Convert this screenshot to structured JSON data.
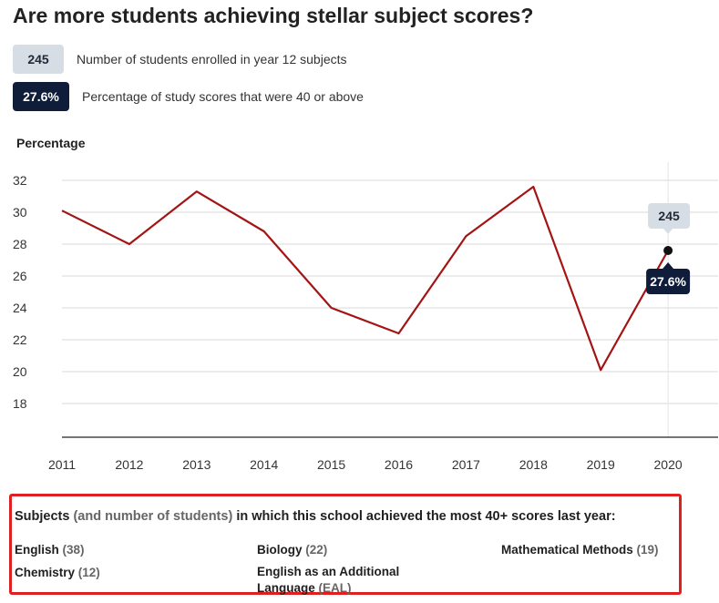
{
  "title": "Are more students achieving stellar subject scores?",
  "legend": {
    "enrolled": {
      "value": "245",
      "label": "Number of students enrolled in year 12 subjects"
    },
    "percentage": {
      "value": "27.6%",
      "label": "Percentage of study scores that were 40 or above"
    }
  },
  "colors": {
    "line": "#a31515",
    "pill_light": "#d7dde5",
    "pill_dark": "#0f1c3a",
    "highlight_border": "#e02020"
  },
  "chart_data": {
    "type": "line",
    "ylabel": "Percentage",
    "xlabel": "",
    "x": [
      "2011",
      "2012",
      "2013",
      "2014",
      "2015",
      "2016",
      "2017",
      "2018",
      "2019",
      "2020"
    ],
    "series": [
      {
        "values": [
          30.1,
          28.0,
          31.3,
          28.8,
          24.0,
          22.4,
          28.5,
          31.6,
          20.1,
          27.6
        ]
      }
    ],
    "ylim": [
      16,
      33
    ],
    "yticks": [
      18,
      20,
      22,
      24,
      26,
      28,
      30,
      32
    ],
    "grid": true,
    "highlight": {
      "x": "2020",
      "students": "245",
      "percentage": "27.6%"
    }
  },
  "subjects": {
    "heading_part1": "Subjects",
    "heading_part2": "(and number of students)",
    "heading_part3": "in which this school achieved the most 40+ scores last year:",
    "items": [
      {
        "name": "English",
        "count": "(38)"
      },
      {
        "name": "Biology",
        "count": "(22)"
      },
      {
        "name": "Mathematical Methods",
        "count": "(19)"
      },
      {
        "name": "Chemistry",
        "count": "(12)"
      },
      {
        "name": "English as an Additional",
        "name2": "Language",
        "count": "(EAL)"
      }
    ]
  }
}
